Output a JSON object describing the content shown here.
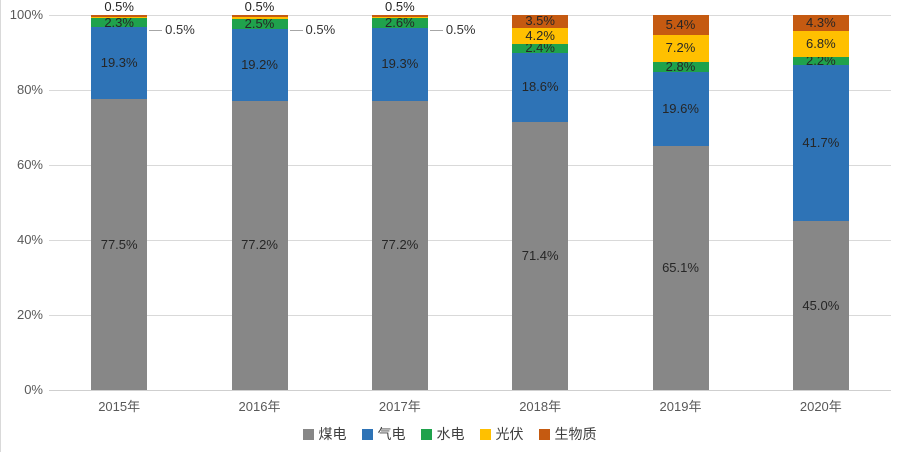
{
  "chart_data": {
    "type": "bar",
    "variant": "stacked-100-percent",
    "title": "",
    "xlabel": "",
    "ylabel": "",
    "categories": [
      "2015年",
      "2016年",
      "2017年",
      "2018年",
      "2019年",
      "2020年"
    ],
    "series": [
      {
        "name": "煤电",
        "color": "#878787",
        "values": [
          77.5,
          77.2,
          77.2,
          71.4,
          65.1,
          45.0
        ]
      },
      {
        "name": "气电",
        "color": "#2E73B6",
        "values": [
          19.3,
          19.2,
          19.3,
          18.6,
          19.6,
          41.7
        ]
      },
      {
        "name": "水电",
        "color": "#1FA24C",
        "values": [
          2.3,
          2.5,
          2.6,
          2.4,
          2.8,
          2.2
        ]
      },
      {
        "name": "光伏",
        "color": "#FFC000",
        "values": [
          0.5,
          0.5,
          0.5,
          4.2,
          7.2,
          6.8
        ],
        "outside_right_years": [
          0,
          1,
          2
        ]
      },
      {
        "name": "生物质",
        "color": "#C55A11",
        "values": [
          0.5,
          0.5,
          0.5,
          3.5,
          5.4,
          4.3
        ],
        "outside_top_years": [
          0,
          1,
          2
        ]
      }
    ],
    "data_label_format": "0.0%",
    "y_axis": {
      "min": 0,
      "max": 100,
      "ticks": [
        "0%",
        "20%",
        "40%",
        "60%",
        "80%",
        "100%"
      ]
    },
    "grid": true,
    "gridline_color": "#d9d9d9",
    "legend_position": "bottom"
  }
}
